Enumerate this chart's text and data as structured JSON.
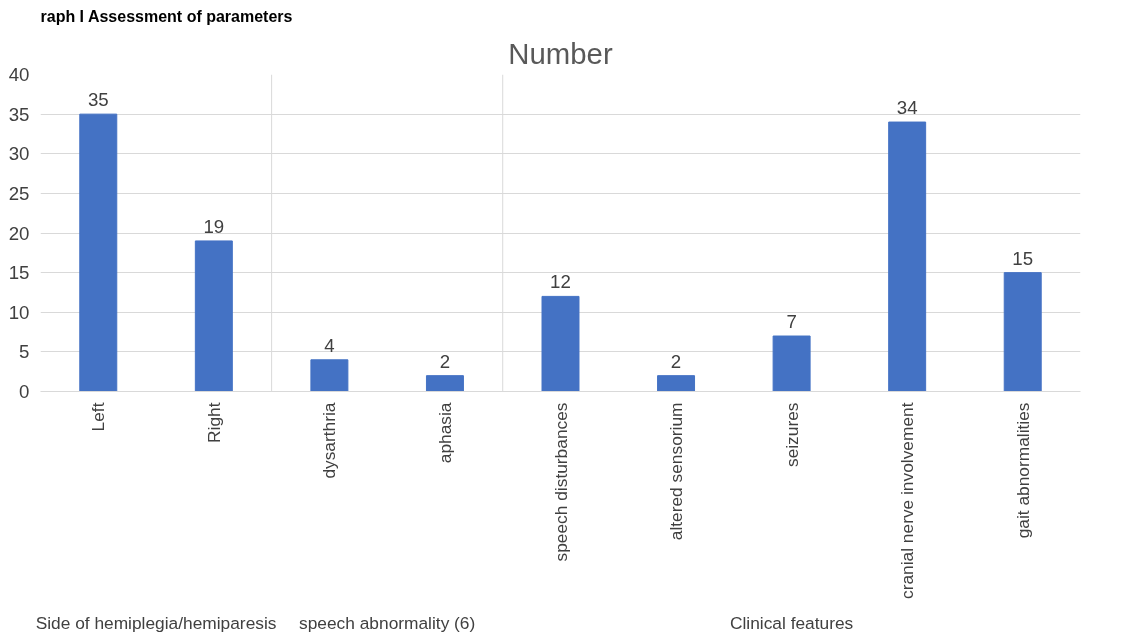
{
  "chart_data": {
    "type": "bar",
    "title": "Number",
    "categories": [
      "Left",
      "Right",
      "dysarthria",
      "aphasia",
      "speech disturbances",
      "altered sensorium",
      "seizures",
      "cranial nerve involvement",
      "gait abnormalities"
    ],
    "values": [
      35,
      19,
      4,
      2,
      12,
      2,
      7,
      34,
      15
    ],
    "color": "#4472c4",
    "ylim": [
      0,
      40
    ],
    "yticks": [
      0,
      5,
      10,
      15,
      20,
      25,
      30,
      35,
      40
    ],
    "grid": "y",
    "data_labels": true,
    "annotations": [
      "raph I Assessment of parameters",
      "Side of hemiplegia/hemiparesis",
      "speech abnormality (6)",
      "Clinical features"
    ]
  }
}
